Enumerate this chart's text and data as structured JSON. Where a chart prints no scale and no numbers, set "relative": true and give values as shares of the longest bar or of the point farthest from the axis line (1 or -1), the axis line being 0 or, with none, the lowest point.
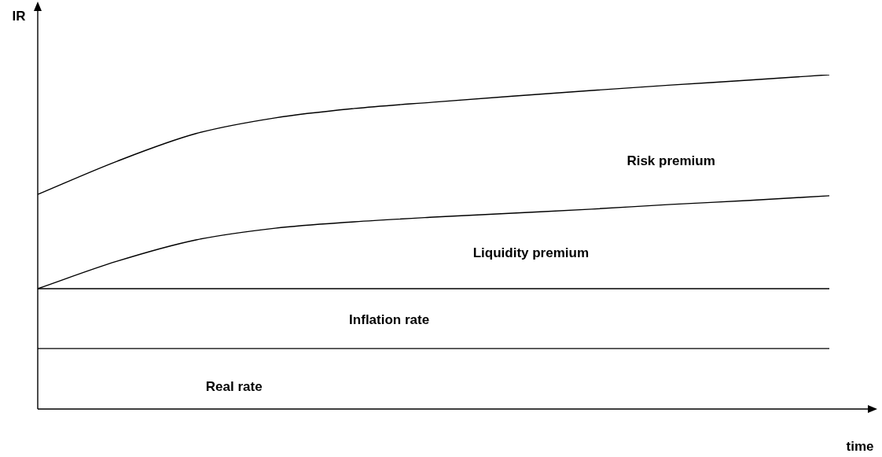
{
  "chart_data": {
    "type": "line",
    "relative": true,
    "xlabel": "time",
    "ylabel": "IR",
    "legend": false,
    "categories": [
      null,
      null,
      null,
      null,
      null,
      null,
      null,
      null,
      null,
      null,
      null
    ],
    "series": [
      {
        "color": "#000000",
        "values": [
          0.642,
          0.741,
          0.824,
          0.871,
          0.899,
          0.918,
          0.936,
          0.953,
          0.969,
          0.984,
          1
        ]
      },
      {
        "color": "#000000",
        "values": [
          0.36,
          0.442,
          0.506,
          0.541,
          0.56,
          0.574,
          0.586,
          0.598,
          0.612,
          0.624,
          0.638
        ]
      },
      {
        "color": "#000000",
        "values": [
          0.36,
          0.36,
          0.36,
          0.36,
          0.36,
          0.36,
          0.36,
          0.36,
          0.36,
          0.36,
          0.36
        ]
      },
      {
        "color": "#000000",
        "values": [
          0.181,
          0.181,
          0.181,
          0.181,
          0.181,
          0.181,
          0.181,
          0.181,
          0.181,
          0.181,
          0.181
        ]
      }
    ],
    "annotations": [
      "Risk premium",
      "Liquidity premium",
      "Inflation rate",
      "Real rate"
    ]
  }
}
